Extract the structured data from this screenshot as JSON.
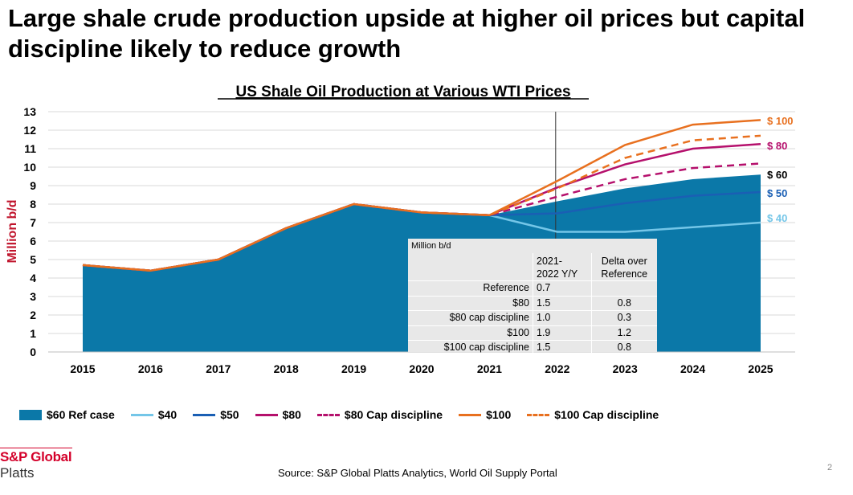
{
  "page": {
    "headline": "Large shale crude production upside at higher oil prices but capital discipline likely to reduce growth",
    "source": "Source: S&P Global Platts Analytics, World Oil Supply Portal",
    "logo_line1": "S&P Global",
    "logo_line2": "Platts",
    "page_number": "2"
  },
  "chart_data": {
    "type": "area",
    "title": "US Shale Oil Production at Various WTI Prices",
    "ylabel": "Million b/d",
    "xlabel": "",
    "ylim": [
      0,
      13
    ],
    "yticks": [
      0,
      1,
      2,
      3,
      4,
      5,
      6,
      7,
      8,
      9,
      10,
      11,
      12,
      13
    ],
    "grid": true,
    "legend_position": "bottom",
    "x": [
      "2015",
      "2016",
      "2017",
      "2018",
      "2019",
      "2020",
      "2021",
      "2022",
      "2023",
      "2024",
      "2025"
    ],
    "marker_year": "2022",
    "area": {
      "name": "$60 Ref case",
      "color": "#0b78a8",
      "values": [
        4.7,
        4.4,
        5.0,
        6.7,
        8.0,
        7.55,
        7.4,
        8.15,
        8.85,
        9.35,
        9.6
      ]
    },
    "series": [
      {
        "name": "$40",
        "end_label": "$ 40",
        "color": "#74c6e8",
        "dash": false,
        "values": [
          4.7,
          4.4,
          5.0,
          6.7,
          8.0,
          7.55,
          7.4,
          6.5,
          6.5,
          6.75,
          7.0
        ]
      },
      {
        "name": "$50",
        "end_label": "$ 50",
        "color": "#1a5fb4",
        "dash": false,
        "values": [
          4.7,
          4.4,
          5.0,
          6.7,
          8.0,
          7.55,
          7.4,
          7.5,
          8.05,
          8.45,
          8.65
        ]
      },
      {
        "name": "$80",
        "end_label": "$ 80",
        "color": "#b5106c",
        "dash": false,
        "values": [
          4.7,
          4.4,
          5.0,
          6.7,
          8.0,
          7.55,
          7.4,
          8.9,
          10.15,
          11.0,
          11.25
        ]
      },
      {
        "name": "$80 Cap discipline",
        "end_label": "",
        "color": "#b5106c",
        "dash": true,
        "values": [
          4.7,
          4.4,
          5.0,
          6.7,
          8.0,
          7.55,
          7.4,
          8.4,
          9.35,
          9.95,
          10.2
        ]
      },
      {
        "name": "$100",
        "end_label": "$ 100",
        "color": "#e8701f",
        "dash": false,
        "values": [
          4.7,
          4.4,
          5.0,
          6.7,
          8.0,
          7.55,
          7.4,
          9.25,
          11.2,
          12.3,
          12.55
        ]
      },
      {
        "name": "$100 Cap discipline",
        "end_label": "",
        "color": "#e8701f",
        "dash": true,
        "values": [
          4.7,
          4.4,
          5.0,
          6.7,
          8.0,
          7.55,
          7.4,
          8.85,
          10.5,
          11.45,
          11.7
        ]
      }
    ],
    "ref_end_label": "$ 60",
    "ref_end_color": "#000000",
    "table": {
      "caption": "Million b/d",
      "headers": [
        "",
        "2021-\n2022 Y/Y",
        "Delta over\nReference"
      ],
      "rows": [
        [
          "Reference",
          "0.7",
          ""
        ],
        [
          "$80",
          "1.5",
          "0.8"
        ],
        [
          "$80 cap discipline",
          "1.0",
          "0.3"
        ],
        [
          "$100",
          "1.9",
          "1.2"
        ],
        [
          "$100 cap discipline",
          "1.5",
          "0.8"
        ]
      ]
    }
  }
}
